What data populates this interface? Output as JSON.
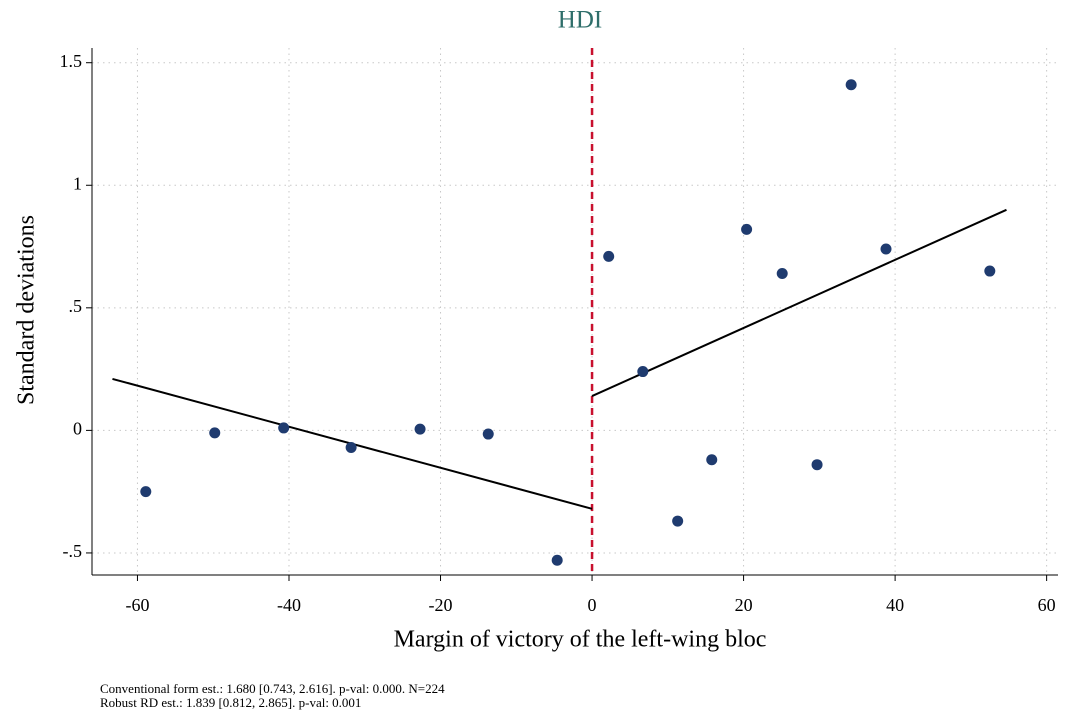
{
  "chart_data": {
    "type": "scatter",
    "title": "HDI",
    "x_label": "Margin of victory of the left-wing bloc",
    "y_label": "Standard deviations",
    "xlim": [
      -66,
      61.5
    ],
    "ylim": [
      -0.59,
      1.56
    ],
    "xticks": [
      -60,
      -40,
      -20,
      0,
      20,
      40,
      60
    ],
    "yticks": [
      {
        "value": -0.5,
        "label": "-.5"
      },
      0,
      {
        "value": 0.5,
        "label": ".5"
      },
      1,
      1.5
    ],
    "grid": true,
    "points": {
      "color": "#1f3b6f",
      "x": [
        -58.9,
        -49.8,
        -40.7,
        -31.8,
        -22.7,
        -13.7,
        -4.6,
        2.2,
        6.7,
        11.3,
        15.8,
        20.4,
        25.1,
        29.7,
        34.2,
        38.8,
        52.5
      ],
      "values": [
        -0.25,
        -0.01,
        0.01,
        -0.07,
        0.005,
        -0.015,
        -0.53,
        0.71,
        0.24,
        -0.37,
        -0.12,
        0.82,
        0.64,
        -0.14,
        1.41,
        0.74,
        0.65
      ]
    },
    "fit_lines": [
      {
        "color": "#000000",
        "x": [
          -63.3,
          0
        ],
        "values": [
          0.21,
          -0.32
        ]
      },
      {
        "color": "#000000",
        "x": [
          0,
          54.7
        ],
        "values": [
          0.14,
          0.9
        ]
      }
    ],
    "cutoff": {
      "value": 0,
      "color": "#c8102e"
    },
    "notes": [
      "Conventional form est.: 1.680 [0.743, 2.616]. p-val: 0.000. N=224",
      "Robust RD est.: 1.839 [0.812, 2.865]. p-val: 0.001"
    ]
  }
}
